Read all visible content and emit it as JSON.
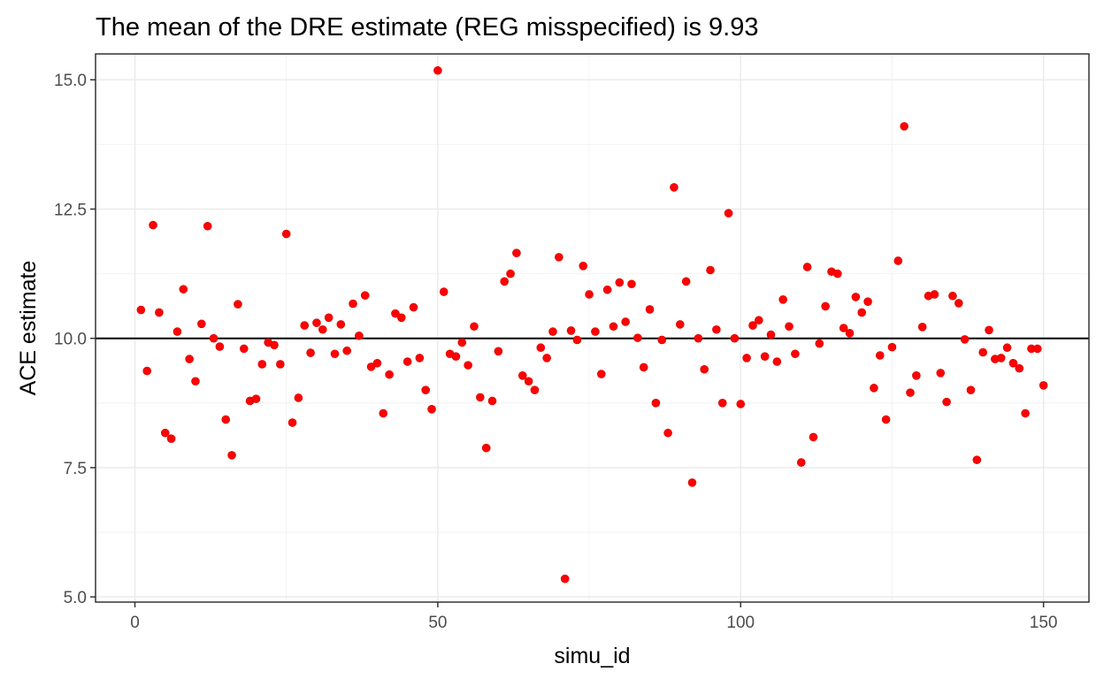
{
  "chart_data": {
    "type": "scatter",
    "title": "The mean of the DRE estimate (REG misspecified) is  9.93",
    "xlabel": "simu_id",
    "ylabel": "ACE estimate",
    "xlim": [
      -6.5,
      157.5
    ],
    "ylim": [
      4.9,
      15.5
    ],
    "xticks": [
      0,
      50,
      100,
      150
    ],
    "xtick_labels": [
      "0",
      "50",
      "100",
      "150"
    ],
    "yticks": [
      5.0,
      7.5,
      10.0,
      12.5,
      15.0
    ],
    "ytick_labels": [
      "5.0",
      "7.5",
      "10.0",
      "12.5",
      "15.0"
    ],
    "grid": true,
    "reference_line": 10.0,
    "point_color": "#ff0000",
    "series": [
      {
        "x": [
          1,
          2,
          3,
          4,
          5,
          6,
          7,
          8,
          9,
          10,
          11,
          12,
          13,
          14,
          15,
          16,
          17,
          18,
          19,
          20,
          21,
          22,
          23,
          24,
          25,
          26,
          27,
          28,
          29,
          30,
          31,
          32,
          33,
          34,
          35,
          36,
          37,
          38,
          39,
          40,
          41,
          42,
          43,
          44,
          45,
          46,
          47,
          48,
          49,
          50,
          51,
          52,
          53,
          54,
          55,
          56,
          57,
          58,
          59,
          60,
          61,
          62,
          63,
          64,
          65,
          66,
          67,
          68,
          69,
          70,
          71,
          72,
          73,
          74,
          75,
          76,
          77,
          78,
          79,
          80,
          81,
          82,
          83,
          84,
          85,
          86,
          87,
          88,
          89,
          90,
          91,
          92,
          93,
          94,
          95,
          96,
          97,
          98,
          99,
          100,
          101,
          102,
          103,
          104,
          105,
          106,
          107,
          108,
          109,
          110,
          111,
          112,
          113,
          114,
          115,
          116,
          117,
          118,
          119,
          120,
          121,
          122,
          123,
          124,
          125,
          126,
          127,
          128,
          129,
          130,
          131,
          132,
          133,
          134,
          135,
          136,
          137,
          138,
          139,
          140,
          141,
          142,
          143,
          144,
          145,
          146,
          147,
          148,
          149,
          150
        ],
        "y": [
          10.55,
          9.37,
          12.19,
          10.5,
          8.17,
          8.06,
          10.13,
          10.95,
          9.6,
          9.17,
          10.28,
          12.17,
          10.0,
          9.84,
          8.43,
          7.74,
          10.66,
          9.8,
          8.79,
          8.83,
          9.5,
          9.92,
          9.87,
          9.5,
          12.02,
          8.37,
          8.85,
          10.25,
          9.72,
          10.3,
          10.17,
          10.4,
          9.7,
          10.27,
          9.76,
          10.67,
          10.05,
          10.83,
          9.45,
          9.52,
          8.55,
          9.3,
          10.48,
          10.4,
          9.55,
          10.6,
          9.62,
          9.0,
          8.63,
          15.18,
          10.9,
          9.7,
          9.65,
          9.92,
          9.48,
          10.23,
          8.86,
          7.88,
          8.79,
          9.75,
          11.1,
          11.25,
          11.65,
          9.28,
          9.17,
          9.0,
          9.82,
          9.62,
          10.13,
          11.57,
          5.35,
          10.15,
          9.97,
          11.4,
          10.85,
          10.13,
          9.31,
          10.94,
          10.23,
          11.08,
          10.32,
          11.05,
          10.01,
          9.44,
          10.56,
          8.75,
          9.97,
          8.17,
          12.92,
          10.27,
          11.1,
          7.21,
          10.0,
          9.4,
          11.32,
          10.17,
          8.75,
          12.42,
          10.0,
          8.73,
          9.62,
          10.25,
          10.35,
          9.65,
          10.07,
          9.55,
          10.75,
          10.23,
          9.7,
          7.6,
          11.38,
          8.09,
          9.9,
          10.62,
          11.29,
          11.25,
          10.2,
          10.1,
          10.8,
          10.5,
          10.71,
          9.04,
          9.67,
          8.43,
          9.83,
          11.5,
          14.1,
          8.95,
          9.28,
          10.22,
          10.82,
          10.85,
          9.33,
          8.77,
          10.82,
          10.68,
          9.98,
          9.0,
          7.65,
          9.73,
          10.16,
          9.6,
          9.62,
          9.82,
          9.52,
          9.42,
          8.55,
          9.8,
          9.8,
          9.09
        ]
      }
    ]
  }
}
